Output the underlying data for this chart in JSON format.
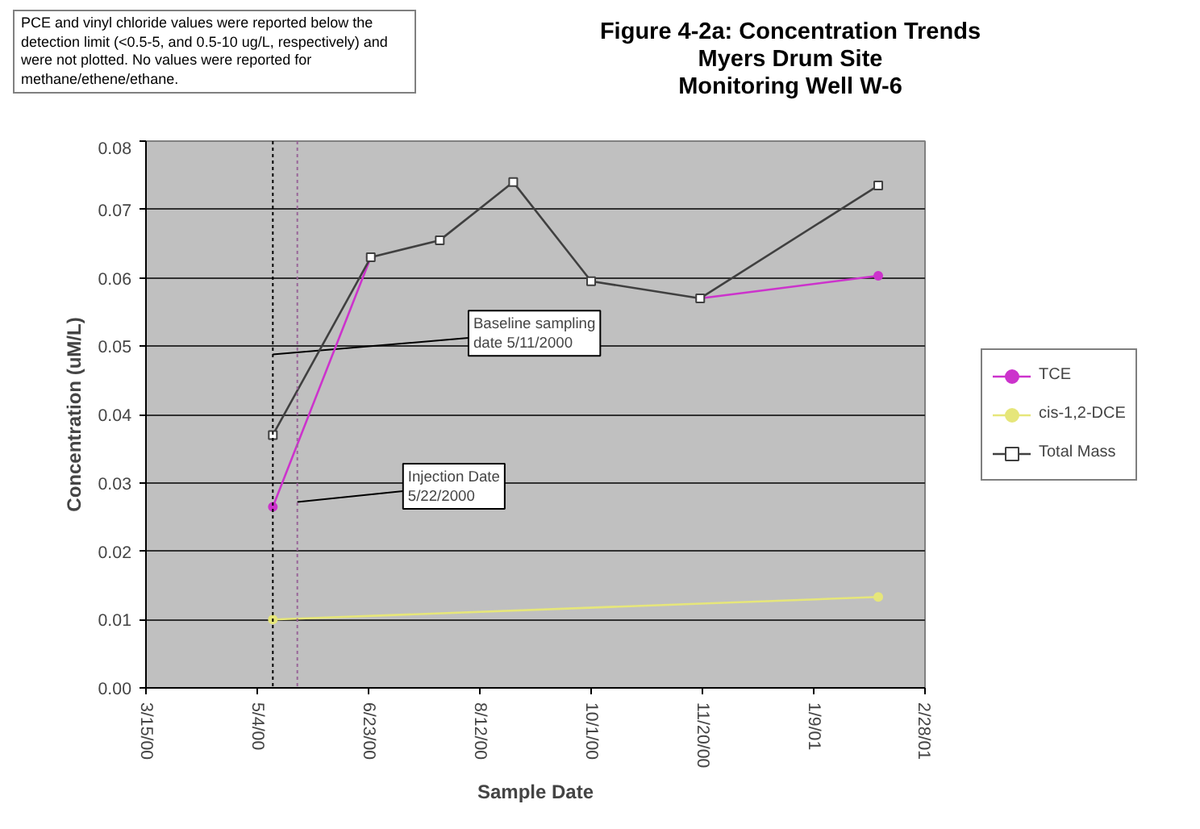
{
  "chart_data": {
    "type": "line",
    "title": "Figure 4-2a: Concentration Trends\nMyers Drum Site\nMonitoring Well W-6",
    "xlabel": "Sample Date",
    "ylabel": "Concentration (uM/L)",
    "annotations": [
      "PCE and vinyl chloride values were reported below the detection limit (<0.5-5, and 0.5-10 ug/L, respectively) and were not plotted.  No values were reported for methane/ethene/ethane."
    ],
    "series": [
      {
        "name": "TCE",
        "color": "#cc33cc",
        "marker": "circle",
        "x": [
          "2000-05-11",
          "2000-06-24",
          "2000-07-25",
          "2000-08-27",
          "2000-10-01",
          "2000-11-19",
          "2001-02-07"
        ],
        "values": [
          0.0265,
          0.063,
          null,
          null,
          null,
          0.057,
          0.0603
        ]
      },
      {
        "name": "cis-1,2-DCE",
        "color": "#e6e67a",
        "marker": "circle",
        "x": [
          "2000-05-11",
          "2001-02-07"
        ],
        "values": [
          0.01,
          0.0133
        ]
      },
      {
        "name": "Total Mass",
        "color": "#404040",
        "marker": "square",
        "x": [
          "2000-05-11",
          "2000-06-24",
          "2000-07-25",
          "2000-08-27",
          "2000-10-01",
          "2000-11-19",
          "2001-02-07"
        ],
        "values": [
          0.037,
          0.063,
          0.0655,
          0.074,
          0.0595,
          0.057,
          0.0735
        ]
      }
    ],
    "ref_lines": [
      {
        "axis": "x",
        "value": "2000-05-11",
        "label": "Baseline sampling\ndate 5/11/2000",
        "color": "#000000",
        "line_style": "dotted"
      },
      {
        "axis": "x",
        "value": "2000-05-22",
        "label": "Injection Date\n5/22/2000",
        "color": "#996699",
        "line_style": "dotted"
      }
    ],
    "xlim": [
      "2000-03-15",
      "2001-02-28"
    ],
    "xticks": [
      {
        "value": "2000-03-15",
        "label": "3/15/00"
      },
      {
        "value": "2000-05-04",
        "label": "5/4/00"
      },
      {
        "value": "2000-06-23",
        "label": "6/23/00"
      },
      {
        "value": "2000-08-12",
        "label": "8/12/00"
      },
      {
        "value": "2000-10-01",
        "label": "10/1/00"
      },
      {
        "value": "2000-11-20",
        "label": "11/20/00"
      },
      {
        "value": "2001-01-09",
        "label": "1/9/01"
      },
      {
        "value": "2001-02-28",
        "label": "2/28/01"
      }
    ],
    "ylim": [
      0,
      0.08
    ],
    "yticks": [
      {
        "value": 0,
        "label": "0.00"
      },
      {
        "value": 0.01,
        "label": "0.01"
      },
      {
        "value": 0.02,
        "label": "0.02"
      },
      {
        "value": 0.03,
        "label": "0.03"
      },
      {
        "value": 0.04,
        "label": "0.04"
      },
      {
        "value": 0.05,
        "label": "0.05"
      },
      {
        "value": 0.06,
        "label": "0.06"
      },
      {
        "value": 0.07,
        "label": "0.07"
      },
      {
        "value": 0.08,
        "label": "0.08"
      }
    ],
    "grid": "y",
    "legend": "right"
  }
}
